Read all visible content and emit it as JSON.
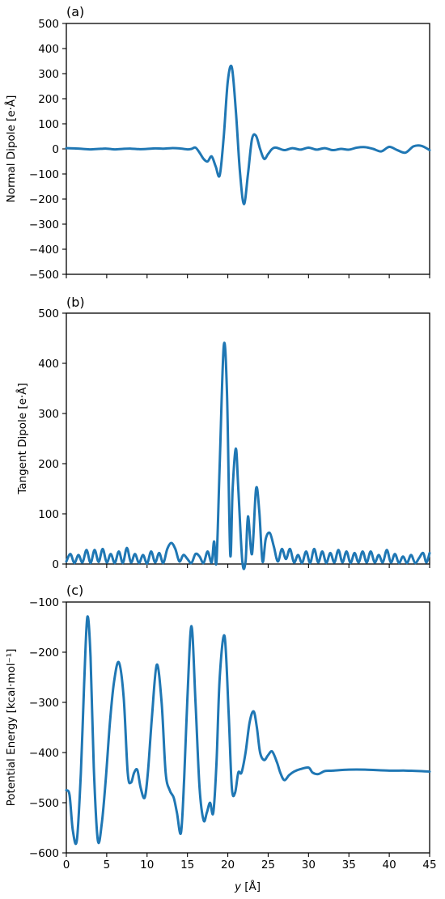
{
  "colors": {
    "line": "#1f77b4",
    "axis": "#000000",
    "background": "#ffffff"
  },
  "chart_data": [
    {
      "type": "line",
      "panel_label": "(a)",
      "title": "",
      "xlabel": "",
      "ylabel": "Normal Dipole [e·Å]",
      "xlim": [
        0,
        45
      ],
      "ylim": [
        -500,
        500
      ],
      "xticks": [
        0,
        5,
        10,
        15,
        20,
        25,
        30,
        35,
        40,
        45
      ],
      "yticks": [
        -500,
        -400,
        -300,
        -200,
        -100,
        0,
        100,
        200,
        300,
        400,
        500
      ],
      "x_tick_labels_shown": false,
      "grid": false,
      "series": [
        {
          "x": [
            0,
            1,
            2,
            3,
            4,
            5,
            6,
            7,
            8,
            9,
            10,
            11,
            12,
            13,
            14,
            15,
            15.5,
            16,
            16.5,
            17,
            17.5,
            18,
            18.5,
            19,
            19.5,
            20,
            20.5,
            21,
            21.5,
            22,
            22.5,
            23,
            23.5,
            24,
            24.5,
            25,
            25.5,
            26,
            27,
            28,
            29,
            30,
            31,
            32,
            33,
            34,
            35,
            36,
            37,
            38,
            39,
            40,
            41,
            42,
            43,
            44,
            45
          ],
          "y": [
            3,
            2,
            0,
            -2,
            0,
            1,
            -2,
            0,
            1,
            -1,
            0,
            2,
            1,
            3,
            2,
            -2,
            0,
            5,
            -15,
            -40,
            -50,
            -30,
            -70,
            -105,
            50,
            270,
            325,
            150,
            -90,
            -220,
            -100,
            40,
            52,
            0,
            -40,
            -20,
            0,
            5,
            -5,
            3,
            -3,
            5,
            -3,
            3,
            -5,
            0,
            -3,
            5,
            7,
            0,
            -10,
            8,
            -5,
            -15,
            10,
            12,
            -5
          ]
        }
      ]
    },
    {
      "type": "line",
      "panel_label": "(b)",
      "title": "",
      "xlabel": "",
      "ylabel": "Tangent Dipole [e·Å]",
      "xlim": [
        0,
        45
      ],
      "ylim": [
        0,
        500
      ],
      "xticks": [
        0,
        5,
        10,
        15,
        20,
        25,
        30,
        35,
        40,
        45
      ],
      "yticks": [
        0,
        100,
        200,
        300,
        400,
        500
      ],
      "x_tick_labels_shown": false,
      "grid": false,
      "series": [
        {
          "x": [
            0,
            0.5,
            1,
            1.5,
            2,
            2.5,
            3,
            3.5,
            4,
            4.5,
            5,
            5.5,
            6,
            6.5,
            7,
            7.5,
            8,
            8.5,
            9,
            9.5,
            10,
            10.5,
            11,
            11.5,
            12,
            12.5,
            13,
            13.5,
            14,
            14.5,
            15,
            15.5,
            16,
            16.5,
            17,
            17.5,
            18,
            18.3,
            18.6,
            19,
            19.5,
            19.9,
            20.3,
            20.6,
            21,
            21.3,
            21.8,
            22.2,
            22.5,
            23,
            23.5,
            23.9,
            24.3,
            24.7,
            25.2,
            25.7,
            26.2,
            26.7,
            27.2,
            27.7,
            28.2,
            28.7,
            29.2,
            29.7,
            30.2,
            30.7,
            31.2,
            31.7,
            32.2,
            32.7,
            33.2,
            33.7,
            34.2,
            34.7,
            35.2,
            35.7,
            36.2,
            36.7,
            37.2,
            37.7,
            38.2,
            38.7,
            39.2,
            39.7,
            40.2,
            40.7,
            41.2,
            41.7,
            42.2,
            42.7,
            43.2,
            43.7,
            44.2,
            44.6,
            45
          ],
          "y": [
            5,
            20,
            2,
            18,
            3,
            28,
            2,
            28,
            4,
            30,
            3,
            20,
            2,
            25,
            2,
            32,
            3,
            20,
            2,
            18,
            1,
            25,
            3,
            22,
            2,
            30,
            42,
            30,
            5,
            18,
            10,
            2,
            20,
            15,
            2,
            25,
            3,
            45,
            5,
            200,
            435,
            340,
            20,
            150,
            230,
            150,
            5,
            5,
            95,
            20,
            150,
            105,
            5,
            50,
            62,
            35,
            5,
            30,
            10,
            30,
            3,
            18,
            2,
            25,
            2,
            30,
            3,
            25,
            2,
            22,
            3,
            28,
            3,
            25,
            2,
            22,
            3,
            25,
            3,
            25,
            3,
            18,
            3,
            28,
            3,
            20,
            2,
            15,
            2,
            18,
            2,
            12,
            22,
            3,
            22
          ]
        }
      ]
    },
    {
      "type": "line",
      "panel_label": "(c)",
      "title": "",
      "xlabel": "y [Å]",
      "ylabel": "Potential Energy [kcal·mol⁻¹]",
      "xlim": [
        0,
        45
      ],
      "ylim": [
        -600,
        -100
      ],
      "xticks": [
        0,
        5,
        10,
        15,
        20,
        25,
        30,
        35,
        40,
        45
      ],
      "x_tick_labels": [
        "0",
        "5",
        "10",
        "15",
        "20",
        "25",
        "30",
        "35",
        "40",
        "45"
      ],
      "yticks": [
        -600,
        -500,
        -400,
        -300,
        -200,
        -100
      ],
      "x_tick_labels_shown": true,
      "grid": false,
      "series": [
        {
          "x": [
            0,
            0.4,
            0.8,
            1.3,
            1.8,
            2.2,
            2.6,
            3.0,
            3.4,
            3.9,
            4.4,
            4.9,
            5.4,
            5.9,
            6.5,
            7.1,
            7.6,
            8.0,
            8.4,
            8.8,
            9.2,
            9.7,
            10.1,
            10.6,
            11.2,
            11.8,
            12.3,
            12.8,
            13.3,
            13.7,
            14.2,
            14.6,
            15.0,
            15.5,
            16.0,
            16.5,
            17.0,
            17.4,
            17.8,
            18.2,
            18.6,
            19.0,
            19.6,
            20.1,
            20.5,
            20.9,
            21.3,
            21.7,
            22.2,
            22.7,
            23.2,
            23.6,
            24.0,
            24.5,
            25.0,
            25.5,
            26.1,
            26.5,
            27.0,
            27.6,
            28.2,
            29.0,
            30.0,
            30.5,
            31.2,
            32.0,
            33.0,
            35.0,
            37.0,
            40.0,
            42.0,
            44.0,
            45.0
          ],
          "y": [
            -475,
            -485,
            -555,
            -575,
            -440,
            -265,
            -130,
            -210,
            -430,
            -575,
            -540,
            -450,
            -340,
            -260,
            -220,
            -290,
            -440,
            -460,
            -440,
            -435,
            -470,
            -490,
            -440,
            -330,
            -225,
            -300,
            -440,
            -475,
            -490,
            -520,
            -560,
            -450,
            -290,
            -148,
            -300,
            -470,
            -535,
            -520,
            -500,
            -520,
            -420,
            -250,
            -168,
            -320,
            -470,
            -480,
            -440,
            -440,
            -400,
            -340,
            -318,
            -350,
            -400,
            -415,
            -405,
            -398,
            -420,
            -440,
            -455,
            -445,
            -438,
            -433,
            -430,
            -440,
            -443,
            -437,
            -436,
            -434,
            -434,
            -436,
            -436,
            -437,
            -438
          ]
        }
      ]
    }
  ]
}
